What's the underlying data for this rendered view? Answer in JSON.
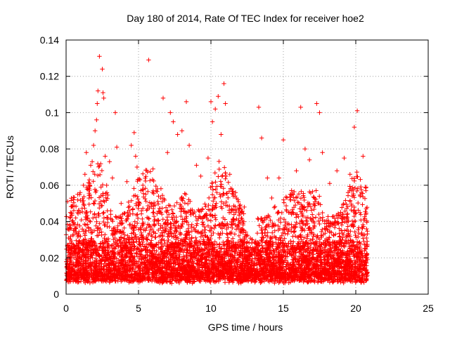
{
  "chart_data": {
    "type": "scatter",
    "title": "Day 180 of 2014, Rate Of TEC Index for receiver hoe2",
    "xlabel": "GPS time / hours",
    "ylabel": "ROTI / TECUs",
    "xlim": [
      0,
      25
    ],
    "ylim": [
      0,
      0.14
    ],
    "x_ticks": [
      0,
      5,
      10,
      15,
      20,
      25
    ],
    "x_tick_labels": [
      "0",
      "5",
      "10",
      "15",
      "20",
      "25"
    ],
    "y_ticks": [
      0,
      0.02,
      0.04,
      0.06,
      0.08,
      0.1,
      0.12,
      0.14
    ],
    "y_tick_labels": [
      "0",
      "0.02",
      "0.04",
      "0.06",
      "0.08",
      "0.1",
      "0.12",
      "0.14"
    ],
    "grid": true,
    "marker": "+",
    "color": "#ff0000",
    "data_extent_hours": [
      0,
      20.8
    ],
    "series": [
      {
        "name": "ROTI",
        "points": [
          [
            0.1,
            0.051
          ],
          [
            0.3,
            0.045
          ],
          [
            0.5,
            0.052
          ],
          [
            0.8,
            0.055
          ],
          [
            1.2,
            0.06
          ],
          [
            1.3,
            0.066
          ],
          [
            1.4,
            0.078
          ],
          [
            1.6,
            0.063
          ],
          [
            1.7,
            0.071
          ],
          [
            1.8,
            0.073
          ],
          [
            1.9,
            0.082
          ],
          [
            2.0,
            0.09
          ],
          [
            2.1,
            0.096
          ],
          [
            2.15,
            0.105
          ],
          [
            2.2,
            0.112
          ],
          [
            2.3,
            0.131
          ],
          [
            2.5,
            0.124
          ],
          [
            2.55,
            0.111
          ],
          [
            2.6,
            0.108
          ],
          [
            2.7,
            0.076
          ],
          [
            2.8,
            0.06
          ],
          [
            3.0,
            0.073
          ],
          [
            3.2,
            0.064
          ],
          [
            3.4,
            0.1
          ],
          [
            3.5,
            0.081
          ],
          [
            3.8,
            0.05
          ],
          [
            4.2,
            0.062
          ],
          [
            4.5,
            0.082
          ],
          [
            4.7,
            0.089
          ],
          [
            4.8,
            0.076
          ],
          [
            4.9,
            0.07
          ],
          [
            5.1,
            0.063
          ],
          [
            5.3,
            0.06
          ],
          [
            5.5,
            0.055
          ],
          [
            5.7,
            0.129
          ],
          [
            6.0,
            0.069
          ],
          [
            6.3,
            0.058
          ],
          [
            6.7,
            0.108
          ],
          [
            7.0,
            0.078
          ],
          [
            7.2,
            0.1
          ],
          [
            7.4,
            0.095
          ],
          [
            7.7,
            0.088
          ],
          [
            8.0,
            0.09
          ],
          [
            8.3,
            0.106
          ],
          [
            8.5,
            0.082
          ],
          [
            9.0,
            0.071
          ],
          [
            9.3,
            0.065
          ],
          [
            9.8,
            0.075
          ],
          [
            10.0,
            0.106
          ],
          [
            10.1,
            0.095
          ],
          [
            10.3,
            0.102
          ],
          [
            10.5,
            0.109
          ],
          [
            10.7,
            0.088
          ],
          [
            10.9,
            0.116
          ],
          [
            11.0,
            0.105
          ],
          [
            11.3,
            0.066
          ],
          [
            11.7,
            0.056
          ],
          [
            12.3,
            0.048
          ],
          [
            13.3,
            0.103
          ],
          [
            13.5,
            0.086
          ],
          [
            13.9,
            0.064
          ],
          [
            14.2,
            0.053
          ],
          [
            14.7,
            0.064
          ],
          [
            15.0,
            0.085
          ],
          [
            15.5,
            0.055
          ],
          [
            15.9,
            0.068
          ],
          [
            16.2,
            0.103
          ],
          [
            16.5,
            0.08
          ],
          [
            16.8,
            0.074
          ],
          [
            17.3,
            0.105
          ],
          [
            17.5,
            0.1
          ],
          [
            17.7,
            0.078
          ],
          [
            18.2,
            0.061
          ],
          [
            18.7,
            0.068
          ],
          [
            19.2,
            0.075
          ],
          [
            19.6,
            0.066
          ],
          [
            19.9,
            0.092
          ],
          [
            20.1,
            0.101
          ],
          [
            20.5,
            0.076
          ],
          [
            20.7,
            0.057
          ]
        ]
      }
    ]
  }
}
